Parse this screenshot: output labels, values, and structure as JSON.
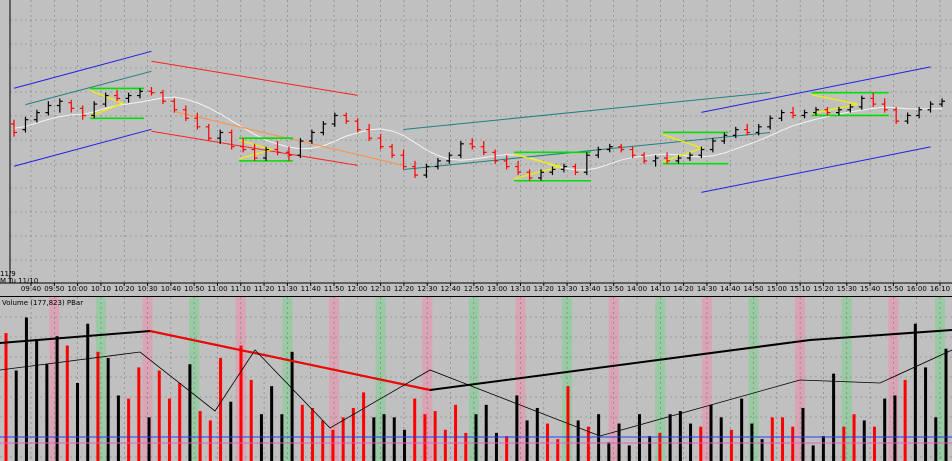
{
  "window": {
    "date_labels": [
      "11/9",
      "M   Tu 11/10"
    ],
    "volume_panel_title": "Volume  (177,823)  PBar"
  },
  "chart_data": [
    {
      "type": "candlestick",
      "title": "",
      "xlabel": "",
      "ylabel": "",
      "grid": true,
      "x_tick_labels": [
        "09:40",
        "09:50",
        "10:00",
        "10:10",
        "10:20",
        "10:30",
        "10:40",
        "10:50",
        "11:00",
        "11:10",
        "11:20",
        "11:30",
        "11:40",
        "11:50",
        "12:00",
        "12:10",
        "12:20",
        "12:30",
        "12:40",
        "12:50",
        "13:00",
        "13:10",
        "13:20",
        "13:30",
        "13:40",
        "13:50",
        "14:00",
        "14:10",
        "14:20",
        "14:30",
        "14:40",
        "14:50",
        "15:00",
        "15:10",
        "15:20",
        "15:30",
        "15:40",
        "15:50",
        "16:00",
        "16:10"
      ],
      "y_range_relative": [
        0,
        100
      ],
      "bars": [
        {
          "o": 62,
          "h": 65,
          "l": 53,
          "c": 56,
          "dir": "down"
        },
        {
          "o": 58,
          "h": 67,
          "l": 56,
          "c": 65,
          "dir": "up"
        },
        {
          "o": 65,
          "h": 72,
          "l": 63,
          "c": 70,
          "dir": "up"
        },
        {
          "o": 70,
          "h": 78,
          "l": 68,
          "c": 75,
          "dir": "up"
        },
        {
          "o": 75,
          "h": 80,
          "l": 70,
          "c": 78,
          "dir": "up"
        },
        {
          "o": 77,
          "h": 79,
          "l": 70,
          "c": 73,
          "dir": "down"
        },
        {
          "o": 73,
          "h": 75,
          "l": 65,
          "c": 68,
          "dir": "down"
        },
        {
          "o": 68,
          "h": 78,
          "l": 66,
          "c": 76,
          "dir": "up"
        },
        {
          "o": 76,
          "h": 84,
          "l": 74,
          "c": 82,
          "dir": "up"
        },
        {
          "o": 82,
          "h": 86,
          "l": 78,
          "c": 80,
          "dir": "down"
        },
        {
          "o": 80,
          "h": 84,
          "l": 77,
          "c": 82,
          "dir": "up"
        },
        {
          "o": 82,
          "h": 87,
          "l": 80,
          "c": 85,
          "dir": "up"
        },
        {
          "o": 85,
          "h": 88,
          "l": 82,
          "c": 84,
          "dir": "down"
        },
        {
          "o": 84,
          "h": 86,
          "l": 76,
          "c": 78,
          "dir": "down"
        },
        {
          "o": 78,
          "h": 80,
          "l": 70,
          "c": 72,
          "dir": "down"
        },
        {
          "o": 72,
          "h": 75,
          "l": 64,
          "c": 66,
          "dir": "down"
        },
        {
          "o": 66,
          "h": 70,
          "l": 58,
          "c": 60,
          "dir": "down"
        },
        {
          "o": 60,
          "h": 62,
          "l": 50,
          "c": 52,
          "dir": "down"
        },
        {
          "o": 52,
          "h": 58,
          "l": 48,
          "c": 56,
          "dir": "up"
        },
        {
          "o": 56,
          "h": 58,
          "l": 44,
          "c": 46,
          "dir": "down"
        },
        {
          "o": 46,
          "h": 52,
          "l": 42,
          "c": 44,
          "dir": "down"
        },
        {
          "o": 44,
          "h": 48,
          "l": 36,
          "c": 38,
          "dir": "down"
        },
        {
          "o": 38,
          "h": 46,
          "l": 36,
          "c": 44,
          "dir": "up"
        },
        {
          "o": 44,
          "h": 50,
          "l": 40,
          "c": 42,
          "dir": "down"
        },
        {
          "o": 42,
          "h": 46,
          "l": 36,
          "c": 40,
          "dir": "down"
        },
        {
          "o": 40,
          "h": 52,
          "l": 38,
          "c": 50,
          "dir": "up"
        },
        {
          "o": 50,
          "h": 58,
          "l": 48,
          "c": 56,
          "dir": "up"
        },
        {
          "o": 56,
          "h": 64,
          "l": 54,
          "c": 62,
          "dir": "up"
        },
        {
          "o": 62,
          "h": 70,
          "l": 60,
          "c": 68,
          "dir": "up"
        },
        {
          "o": 68,
          "h": 70,
          "l": 62,
          "c": 64,
          "dir": "down"
        },
        {
          "o": 64,
          "h": 66,
          "l": 56,
          "c": 58,
          "dir": "down"
        },
        {
          "o": 58,
          "h": 62,
          "l": 50,
          "c": 52,
          "dir": "down"
        },
        {
          "o": 52,
          "h": 55,
          "l": 44,
          "c": 46,
          "dir": "down"
        },
        {
          "o": 46,
          "h": 48,
          "l": 38,
          "c": 40,
          "dir": "down"
        },
        {
          "o": 40,
          "h": 44,
          "l": 30,
          "c": 32,
          "dir": "down"
        },
        {
          "o": 32,
          "h": 36,
          "l": 24,
          "c": 26,
          "dir": "down"
        },
        {
          "o": 26,
          "h": 34,
          "l": 24,
          "c": 32,
          "dir": "up"
        },
        {
          "o": 32,
          "h": 38,
          "l": 30,
          "c": 36,
          "dir": "up"
        },
        {
          "o": 36,
          "h": 42,
          "l": 34,
          "c": 40,
          "dir": "up"
        },
        {
          "o": 40,
          "h": 50,
          "l": 38,
          "c": 48,
          "dir": "up"
        },
        {
          "o": 48,
          "h": 52,
          "l": 44,
          "c": 46,
          "dir": "down"
        },
        {
          "o": 46,
          "h": 50,
          "l": 40,
          "c": 42,
          "dir": "down"
        },
        {
          "o": 42,
          "h": 44,
          "l": 34,
          "c": 36,
          "dir": "down"
        },
        {
          "o": 36,
          "h": 40,
          "l": 30,
          "c": 32,
          "dir": "down"
        },
        {
          "o": 32,
          "h": 36,
          "l": 26,
          "c": 28,
          "dir": "down"
        },
        {
          "o": 28,
          "h": 30,
          "l": 22,
          "c": 24,
          "dir": "down"
        },
        {
          "o": 24,
          "h": 30,
          "l": 22,
          "c": 28,
          "dir": "up"
        },
        {
          "o": 28,
          "h": 32,
          "l": 26,
          "c": 30,
          "dir": "up"
        },
        {
          "o": 30,
          "h": 34,
          "l": 28,
          "c": 32,
          "dir": "up"
        },
        {
          "o": 32,
          "h": 34,
          "l": 26,
          "c": 28,
          "dir": "down"
        },
        {
          "o": 28,
          "h": 42,
          "l": 26,
          "c": 40,
          "dir": "up"
        },
        {
          "o": 40,
          "h": 46,
          "l": 38,
          "c": 44,
          "dir": "up"
        },
        {
          "o": 44,
          "h": 48,
          "l": 42,
          "c": 46,
          "dir": "up"
        },
        {
          "o": 46,
          "h": 48,
          "l": 42,
          "c": 44,
          "dir": "down"
        },
        {
          "o": 44,
          "h": 46,
          "l": 38,
          "c": 40,
          "dir": "down"
        },
        {
          "o": 40,
          "h": 42,
          "l": 34,
          "c": 36,
          "dir": "down"
        },
        {
          "o": 36,
          "h": 40,
          "l": 32,
          "c": 38,
          "dir": "up"
        },
        {
          "o": 38,
          "h": 42,
          "l": 34,
          "c": 36,
          "dir": "down"
        },
        {
          "o": 36,
          "h": 40,
          "l": 34,
          "c": 38,
          "dir": "up"
        },
        {
          "o": 38,
          "h": 42,
          "l": 36,
          "c": 40,
          "dir": "up"
        },
        {
          "o": 40,
          "h": 46,
          "l": 38,
          "c": 44,
          "dir": "up"
        },
        {
          "o": 44,
          "h": 52,
          "l": 42,
          "c": 50,
          "dir": "up"
        },
        {
          "o": 50,
          "h": 56,
          "l": 48,
          "c": 54,
          "dir": "up"
        },
        {
          "o": 54,
          "h": 60,
          "l": 52,
          "c": 58,
          "dir": "up"
        },
        {
          "o": 58,
          "h": 62,
          "l": 54,
          "c": 56,
          "dir": "down"
        },
        {
          "o": 56,
          "h": 62,
          "l": 54,
          "c": 60,
          "dir": "up"
        },
        {
          "o": 60,
          "h": 68,
          "l": 58,
          "c": 66,
          "dir": "up"
        },
        {
          "o": 66,
          "h": 72,
          "l": 64,
          "c": 70,
          "dir": "up"
        },
        {
          "o": 70,
          "h": 74,
          "l": 66,
          "c": 68,
          "dir": "down"
        },
        {
          "o": 68,
          "h": 72,
          "l": 66,
          "c": 70,
          "dir": "up"
        },
        {
          "o": 70,
          "h": 74,
          "l": 68,
          "c": 72,
          "dir": "up"
        },
        {
          "o": 72,
          "h": 74,
          "l": 68,
          "c": 70,
          "dir": "down"
        },
        {
          "o": 70,
          "h": 74,
          "l": 68,
          "c": 72,
          "dir": "up"
        },
        {
          "o": 72,
          "h": 76,
          "l": 70,
          "c": 74,
          "dir": "up"
        },
        {
          "o": 74,
          "h": 82,
          "l": 72,
          "c": 80,
          "dir": "up"
        },
        {
          "o": 80,
          "h": 84,
          "l": 74,
          "c": 76,
          "dir": "down"
        },
        {
          "o": 76,
          "h": 80,
          "l": 70,
          "c": 72,
          "dir": "down"
        },
        {
          "o": 72,
          "h": 74,
          "l": 62,
          "c": 64,
          "dir": "down"
        },
        {
          "o": 64,
          "h": 70,
          "l": 62,
          "c": 68,
          "dir": "up"
        },
        {
          "o": 68,
          "h": 74,
          "l": 66,
          "c": 72,
          "dir": "up"
        },
        {
          "o": 72,
          "h": 78,
          "l": 70,
          "c": 76,
          "dir": "up"
        },
        {
          "o": 76,
          "h": 80,
          "l": 74,
          "c": 78,
          "dir": "up"
        }
      ]
    },
    {
      "type": "bar",
      "title": "Volume  (177,823)  PBar",
      "xlabel": "",
      "ylabel": "",
      "grid": true,
      "y_range_relative": [
        0,
        100
      ],
      "colors": {
        "up": "#000000",
        "down": "#ff0000"
      },
      "values": [
        82,
        58,
        92,
        78,
        62,
        80,
        74,
        50,
        88,
        70,
        66,
        42,
        40,
        60,
        28,
        58,
        40,
        50,
        62,
        32,
        26,
        66,
        38,
        74,
        52,
        30,
        48,
        30,
        70,
        36,
        34,
        26,
        20,
        28,
        34,
        44,
        28,
        30,
        28,
        20,
        40,
        30,
        32,
        20,
        36,
        18,
        30,
        36,
        18,
        16,
        42,
        26,
        34,
        24,
        14,
        48,
        26,
        22,
        30,
        12,
        24,
        10,
        30,
        16,
        18,
        30,
        32,
        24,
        22,
        36,
        28,
        20,
        40,
        24,
        14,
        28,
        28,
        22,
        34,
        10,
        16,
        56,
        22,
        30,
        26,
        22,
        40,
        42,
        52,
        88,
        60,
        28,
        72
      ],
      "directions": [
        "d",
        "u",
        "u",
        "u",
        "u",
        "u",
        "d",
        "u",
        "u",
        "d",
        "u",
        "u",
        "d",
        "d",
        "u",
        "d",
        "d",
        "d",
        "u",
        "d",
        "d",
        "d",
        "u",
        "d",
        "d",
        "u",
        "u",
        "u",
        "u",
        "d",
        "d",
        "d",
        "d",
        "d",
        "d",
        "d",
        "u",
        "u",
        "u",
        "u",
        "d",
        "d",
        "d",
        "d",
        "d",
        "d",
        "u",
        "u",
        "u",
        "d",
        "u",
        "u",
        "u",
        "d",
        "d",
        "d",
        "u",
        "d",
        "u",
        "u",
        "u",
        "u",
        "u",
        "u",
        "d",
        "u",
        "u",
        "u",
        "d",
        "u",
        "u",
        "d",
        "u",
        "u",
        "u",
        "d",
        "d",
        "d",
        "u",
        "u",
        "u",
        "u",
        "d",
        "d",
        "u",
        "d",
        "u",
        "u",
        "d",
        "u",
        "u",
        "u",
        "u"
      ]
    }
  ]
}
